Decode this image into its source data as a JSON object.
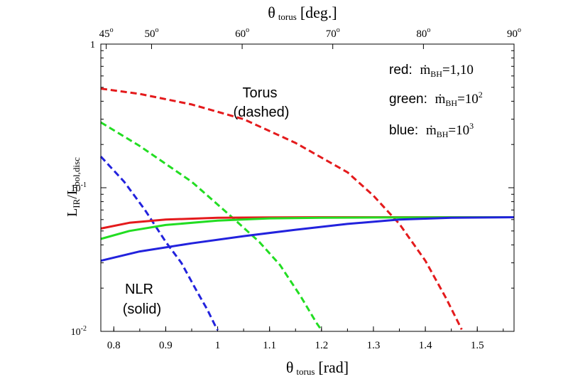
{
  "chart_data": {
    "type": "line",
    "xlabel": {
      "main": "θ",
      "sub": "torus",
      "tail": "[rad]"
    },
    "top_axis_label": {
      "main": "θ",
      "sub": "torus",
      "tail": "[deg.]"
    },
    "ylabel": {
      "main": "L",
      "sub1": "IR",
      "mid": "/L",
      "sub2": "bol,disc"
    },
    "xlim": [
      0.775,
      1.5708
    ],
    "ylim": [
      0.01,
      1
    ],
    "yscale": "log",
    "x_ticks": [
      {
        "value": 0.8,
        "label": "0.8"
      },
      {
        "value": 0.9,
        "label": "0.9"
      },
      {
        "value": 1.0,
        "label": "1"
      },
      {
        "value": 1.1,
        "label": "1.1"
      },
      {
        "value": 1.2,
        "label": "1.2"
      },
      {
        "value": 1.3,
        "label": "1.3"
      },
      {
        "value": 1.4,
        "label": "1.4"
      },
      {
        "value": 1.5,
        "label": "1.5"
      }
    ],
    "top_ticks": [
      {
        "value": 0.7854,
        "label": "45",
        "sup": "o"
      },
      {
        "value": 0.8727,
        "label": "50",
        "sup": "o"
      },
      {
        "value": 1.0472,
        "label": "60",
        "sup": "o"
      },
      {
        "value": 1.2217,
        "label": "70",
        "sup": "o"
      },
      {
        "value": 1.3963,
        "label": "80",
        "sup": "o"
      },
      {
        "value": 1.5708,
        "label": "90",
        "sup": "o"
      }
    ],
    "y_ticks": [
      {
        "value": 1,
        "label": "1",
        "sup": ""
      },
      {
        "value": 0.1,
        "label": "10",
        "sup": "-1"
      },
      {
        "value": 0.01,
        "label": "10",
        "sup": "-2"
      }
    ],
    "annotations": {
      "torus": [
        "Torus",
        "(dashed)"
      ],
      "nlr": [
        "NLR",
        "(solid)"
      ]
    },
    "legend": [
      {
        "color_name": "red:",
        "pre": "ṁ",
        "sub": "BH",
        "post": "=1,10",
        "sup": ""
      },
      {
        "color_name": "green:",
        "pre": "ṁ",
        "sub": "BH",
        "post": "=10",
        "sup": "2"
      },
      {
        "color_name": "blue:",
        "pre": "ṁ",
        "sub": "BH",
        "post": "=10",
        "sup": "3"
      }
    ],
    "series": [
      {
        "color": "#e41a1c",
        "style": "dashed",
        "x": [
          0.775,
          0.85,
          0.95,
          1.05,
          1.15,
          1.25,
          1.3,
          1.35,
          1.4,
          1.44,
          1.47
        ],
        "y": [
          0.49,
          0.45,
          0.38,
          0.3,
          0.205,
          0.128,
          0.088,
          0.056,
          0.031,
          0.017,
          0.0103
        ]
      },
      {
        "color": "#22dd22",
        "style": "dashed",
        "x": [
          0.775,
          0.85,
          0.95,
          1.02,
          1.08,
          1.12,
          1.16,
          1.19,
          1.2
        ],
        "y": [
          0.285,
          0.195,
          0.11,
          0.066,
          0.042,
          0.029,
          0.0175,
          0.0115,
          0.0102
        ]
      },
      {
        "color": "#2222dd",
        "style": "dashed",
        "x": [
          0.775,
          0.82,
          0.86,
          0.9,
          0.93,
          0.96,
          0.98,
          0.995,
          1.0
        ],
        "y": [
          0.165,
          0.11,
          0.07,
          0.042,
          0.03,
          0.019,
          0.0142,
          0.011,
          0.0102
        ]
      },
      {
        "color": "#e41a1c",
        "style": "solid",
        "x": [
          0.775,
          0.83,
          0.9,
          1.0,
          1.1,
          1.2,
          1.3,
          1.4,
          1.5708
        ],
        "y": [
          0.052,
          0.057,
          0.06,
          0.0618,
          0.0622,
          0.0623,
          0.0623,
          0.0623,
          0.0623
        ]
      },
      {
        "color": "#22dd22",
        "style": "solid",
        "x": [
          0.775,
          0.83,
          0.9,
          1.0,
          1.1,
          1.2,
          1.3,
          1.4,
          1.5708
        ],
        "y": [
          0.044,
          0.05,
          0.055,
          0.059,
          0.0612,
          0.0618,
          0.062,
          0.0622,
          0.0623
        ]
      },
      {
        "color": "#2222dd",
        "style": "solid",
        "x": [
          0.775,
          0.85,
          0.95,
          1.05,
          1.15,
          1.25,
          1.35,
          1.45,
          1.5708
        ],
        "y": [
          0.031,
          0.036,
          0.041,
          0.046,
          0.051,
          0.056,
          0.06,
          0.0618,
          0.0623
        ]
      }
    ]
  }
}
